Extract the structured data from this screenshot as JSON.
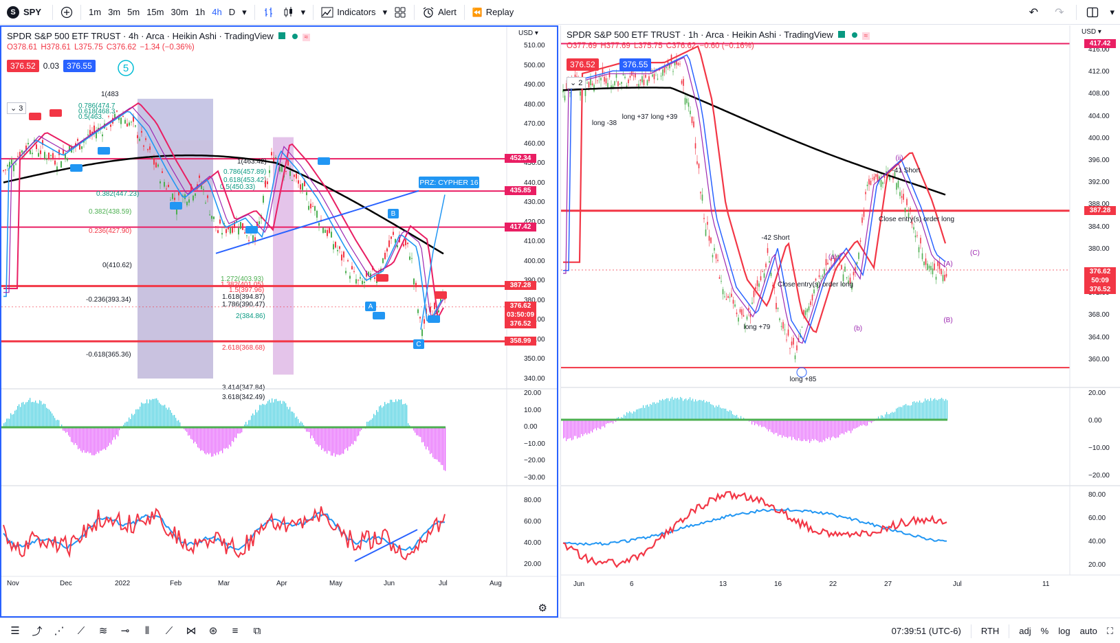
{
  "toolbar": {
    "symbol": "SPY",
    "symbol_icon": "S",
    "intervals": [
      "1m",
      "3m",
      "5m",
      "15m",
      "30m",
      "1h",
      "4h",
      "D"
    ],
    "active_interval": "4h",
    "indicators_label": "Indicators",
    "alert_label": "Alert",
    "replay_label": "Replay"
  },
  "left_chart": {
    "title": "SPDR S&P 500 ETF TRUST · 4h · Arca · Heikin Ashi · TradingView",
    "ohlc": {
      "o": "O378.61",
      "h": "H378.61",
      "l": "L375.75",
      "c": "C376.62",
      "chg": "−1.34 (−0.36%)"
    },
    "bid": "376.52",
    "spread": "0.03",
    "ask": "376.55",
    "collapsed_count": "3",
    "currency": "USD",
    "price_axis": [
      "510.00",
      "500.00",
      "490.00",
      "480.00",
      "470.00",
      "460.00",
      "450.00",
      "440.00",
      "430.00",
      "420.00",
      "410.00",
      "400.00",
      "390.00",
      "380.00",
      "370.00",
      "360.00",
      "350.00",
      "340.00"
    ],
    "level_tags": [
      {
        "label": "452.34",
        "color": "#e91e63"
      },
      {
        "label": "435.85",
        "color": "#e91e63"
      },
      {
        "label": "417.42",
        "color": "#e91e63"
      },
      {
        "label": "387.28",
        "color": "#f23645"
      },
      {
        "label": "358.99",
        "color": "#f23645"
      }
    ],
    "last_price_tags": [
      "376.62",
      "03:50:09",
      "376.52"
    ],
    "time_axis": [
      "Nov",
      "Dec",
      "2022",
      "Feb",
      "Mar",
      "Apr",
      "May",
      "Jun",
      "Jul",
      "Aug"
    ],
    "fib_labels": [
      "1(483",
      "0.786(474.7",
      "0.618(468.3",
      "0.5(463.",
      "0.382(438.59)",
      "0.236(427.90)",
      "0(410.62)",
      "-0.236(393.34)",
      "-0.618(365.36)",
      "1(463.42)",
      "0.786(457.89)",
      "0.618(453.42)",
      "0.5(450.33)",
      "0.382(447.23)",
      "1.272(403.93)",
      "1.382(401.05)",
      "1.5(397.96)",
      "1.618(394.87)",
      "1.786(390.47)",
      "2(384.86)",
      "2.618(368.68)",
      "3.414(347.84)",
      "3.618(342.49)"
    ],
    "prz_label": "PRZ: CYPHER 16",
    "osc_axis": [
      "20.00",
      "10.00",
      "0.00",
      "−10.00",
      "−20.00",
      "−30.00"
    ],
    "rsi_axis": [
      "80.00",
      "60.00",
      "40.00",
      "20.00"
    ]
  },
  "right_chart": {
    "title": "SPDR S&P 500 ETF TRUST · 1h · Arca · Heikin Ashi · TradingView",
    "ohlc": {
      "o": "O377.69",
      "h": "H377.69",
      "l": "L375.75",
      "c": "C376.62",
      "chg": "−0.60 (−0.16%)"
    },
    "bid": "376.52",
    "ask": "376.55",
    "collapsed_count": "2",
    "currency": "USD",
    "price_axis": [
      "416.00",
      "412.00",
      "408.00",
      "404.00",
      "400.00",
      "396.00",
      "392.00",
      "388.00",
      "384.00",
      "380.00",
      "376.00",
      "372.00",
      "368.00",
      "364.00",
      "360.00"
    ],
    "level_tags": [
      {
        "label": "417.42",
        "color": "#e91e63"
      },
      {
        "label": "387.28",
        "color": "#f23645"
      }
    ],
    "last_price_tags": [
      "376.62",
      "50:09",
      "376.52"
    ],
    "time_axis": [
      "Jun",
      "6",
      "13",
      "16",
      "22",
      "27",
      "Jul",
      "11"
    ],
    "annotations": [
      "long -38",
      "long +37",
      "long +39",
      "-42 Short",
      "Close entry(s) order long",
      "long +79",
      "long +85",
      "(a)",
      "(b)",
      "(ii)",
      "-41 Short",
      "Close entry(s) order long",
      "(A)",
      "(B)",
      "(C)"
    ],
    "osc_axis": [
      "20.00",
      "0.00",
      "−10.00",
      "−20.00"
    ],
    "rsi_axis": [
      "80.00",
      "60.00",
      "40.00",
      "20.00"
    ]
  },
  "bottom_bar": {
    "clock": "07:39:51 (UTC-6)",
    "session": "RTH",
    "adj": "adj",
    "percent": "%",
    "log": "log",
    "auto": "auto"
  }
}
